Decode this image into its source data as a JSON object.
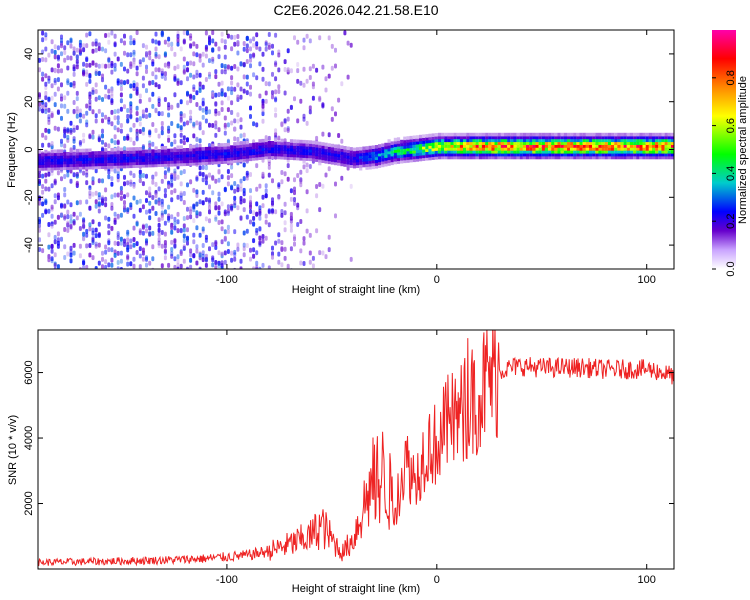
{
  "title": "C2E6.2026.042.21.58.E10",
  "colors": {
    "snr_line": "#ee2222",
    "frame": "#000000",
    "background": "#ffffff"
  },
  "chart_data": [
    {
      "type": "heatmap",
      "title": "C2E6.2026.042.21.58.E10",
      "xlabel": "Height of straight line (km)",
      "ylabel": "Frequency (Hz)",
      "xlim": [
        -190,
        113
      ],
      "ylim": [
        -50,
        50
      ],
      "xticks": [
        -100,
        0,
        100
      ],
      "xtick_labels": [
        "-100",
        "0",
        "100"
      ],
      "yticks": [
        -40,
        -20,
        0,
        20,
        40
      ],
      "ytick_labels": [
        "-40",
        "-20",
        "0",
        "20",
        "40"
      ],
      "centerline": {
        "x": [
          -190,
          -150,
          -120,
          -100,
          -80,
          -60,
          -40,
          -30,
          -20,
          -10,
          0,
          20,
          40,
          60,
          80,
          100,
          113
        ],
        "frequency": [
          -4,
          -3,
          -2,
          -1,
          1,
          0,
          -3,
          -2,
          0,
          1,
          2,
          2,
          2,
          2,
          2,
          2,
          2
        ]
      },
      "colorbar": {
        "label": "Normalized spectral amplitude",
        "range": [
          0,
          1
        ],
        "ticks": [
          0.0,
          0.2,
          0.4,
          0.6,
          0.8
        ],
        "tick_labels": [
          "0.0",
          "0.2",
          "0.4",
          "0.6",
          "0.8"
        ],
        "colormap": [
          "#ffffff",
          "#6600cc",
          "#0000ff",
          "#00cccc",
          "#00ff00",
          "#ffff00",
          "#ff8800",
          "#ff0000",
          "#ff00aa"
        ]
      }
    },
    {
      "type": "line",
      "title": "",
      "xlabel": "Height of straight line (km)",
      "ylabel": "SNR (10 * v/v)",
      "xlim": [
        -190,
        113
      ],
      "ylim": [
        0,
        7300
      ],
      "xticks": [
        -100,
        0,
        100
      ],
      "xtick_labels": [
        "-100",
        "0",
        "100"
      ],
      "yticks": [
        2000,
        4000,
        6000
      ],
      "ytick_labels": [
        "2000",
        "4000",
        "6000"
      ],
      "series": [
        {
          "name": "SNR",
          "x": [
            -190,
            -160,
            -130,
            -110,
            -90,
            -80,
            -70,
            -60,
            -55,
            -50,
            -45,
            -40,
            -35,
            -30,
            -25,
            -20,
            -15,
            -10,
            -5,
            0,
            5,
            10,
            15,
            20,
            25,
            30,
            35,
            40,
            50,
            60,
            70,
            80,
            90,
            100,
            105,
            110,
            113
          ],
          "y": [
            200,
            230,
            270,
            320,
            420,
            550,
            750,
            1000,
            1350,
            900,
            500,
            900,
            1900,
            2700,
            2900,
            1800,
            3300,
            2700,
            3800,
            3800,
            4400,
            4600,
            5000,
            5400,
            5800,
            6050,
            6150,
            6200,
            6150,
            6150,
            6150,
            6100,
            6100,
            6100,
            6050,
            5950,
            5900
          ]
        }
      ]
    }
  ]
}
